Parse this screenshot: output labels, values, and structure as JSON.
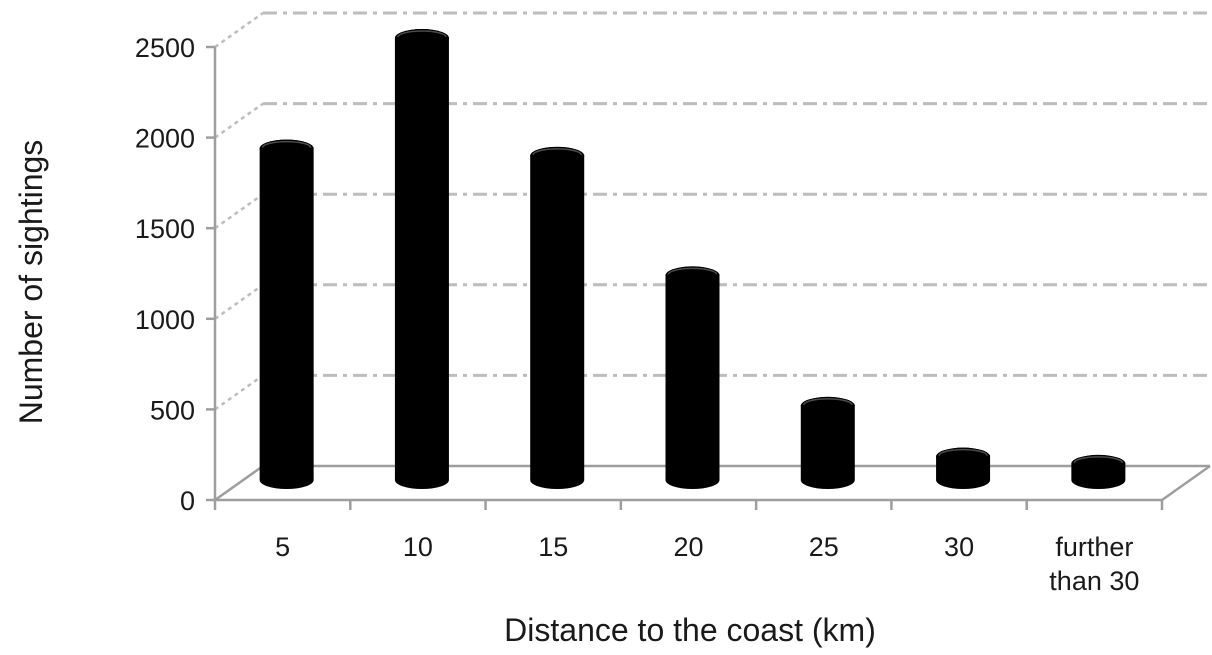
{
  "chart_data": {
    "type": "bar",
    "style": "3d-cylinder",
    "title": "",
    "xlabel": "Distance to the coast (km)",
    "ylabel": "Number of sightings",
    "ylim": [
      0,
      2500
    ],
    "yticks": [
      0,
      500,
      1000,
      1500,
      2000,
      2500
    ],
    "grid": true,
    "legend": "none",
    "categories": [
      [
        "5"
      ],
      [
        "10"
      ],
      [
        "15"
      ],
      [
        "20"
      ],
      [
        "25"
      ],
      [
        "30"
      ],
      [
        "further",
        "than 30"
      ]
    ],
    "values": [
      1840,
      2450,
      1800,
      1140,
      420,
      140,
      100
    ],
    "colors": {
      "bar": "#000000",
      "grid": "#bdbdbd",
      "axis": "#9e9e9e"
    }
  }
}
